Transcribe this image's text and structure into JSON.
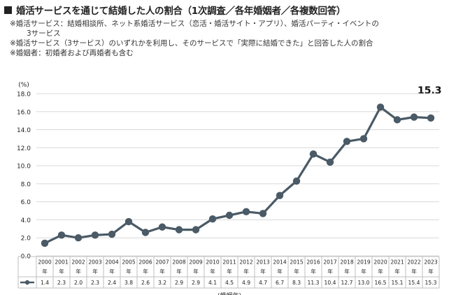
{
  "header": {
    "title": "婚活サービスを通じて結婚した人の割合（1次調査／各年婚姻者／各複数回答）",
    "notes": [
      "※婚活サービス：結婚相談所、ネット系婚活サービス（恋活・婚活サイト・アプリ）、婚活パーティ・イベントの",
      "3サービス",
      "※婚活サービス（3サービス）のいずれかを利用し、そのサービスで「実際に結婚できた」と回答した人の割合",
      "※婚姻者：初婚者および再婚者も含む"
    ]
  },
  "highlight_value": "15.3",
  "chart_data": {
    "type": "line",
    "ylabel": "(%)",
    "xlabel": "(婚姻年)",
    "ylim": [
      0,
      18
    ],
    "yticks": [
      "0.0",
      "2.0",
      "4.0",
      "6.0",
      "8.0",
      "10.0",
      "12.0",
      "14.0",
      "16.0",
      "18.0"
    ],
    "grid": true,
    "categories": [
      "2000",
      "2001",
      "2002",
      "2003",
      "2004",
      "2005",
      "2006",
      "2007",
      "2008",
      "2009",
      "2010",
      "2011",
      "2012",
      "2013",
      "2014",
      "2015",
      "2016",
      "2017",
      "2018",
      "2019",
      "2020",
      "2021",
      "2022",
      "2023"
    ],
    "category_suffix": "年",
    "series": [
      {
        "values": [
          1.4,
          2.3,
          2.0,
          2.3,
          2.4,
          3.8,
          2.6,
          3.2,
          2.9,
          2.9,
          4.1,
          4.5,
          4.9,
          4.7,
          6.7,
          8.3,
          11.3,
          10.4,
          12.7,
          13.0,
          16.5,
          15.1,
          15.4,
          15.3
        ],
        "labels": [
          "1.4",
          "2.3",
          "2.0",
          "2.3",
          "2.4",
          "3.8",
          "2.6",
          "3.2",
          "2.9",
          "2.9",
          "4.1",
          "4.5",
          "4.9",
          "4.7",
          "6.7",
          "8.3",
          "11.3",
          "10.4",
          "12.7",
          "13.0",
          "16.5",
          "15.1",
          "15.4",
          "15.3"
        ],
        "color": "#4a5a66"
      }
    ],
    "grid_color": "#d9d9d9",
    "table_border_color": "#bfbfbf"
  }
}
